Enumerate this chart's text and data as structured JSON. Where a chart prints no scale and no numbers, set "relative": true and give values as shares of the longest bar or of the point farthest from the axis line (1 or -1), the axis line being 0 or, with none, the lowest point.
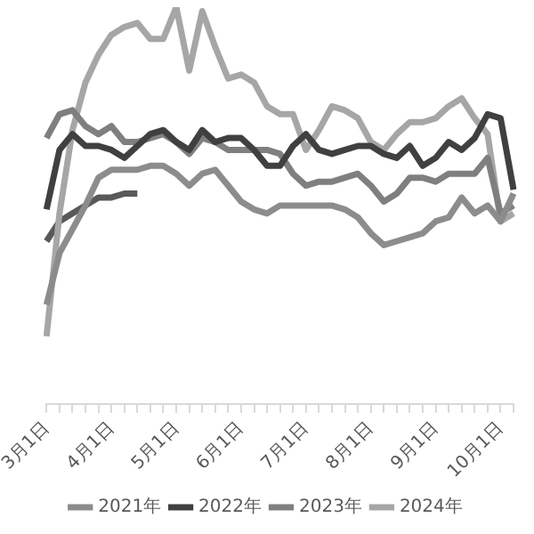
{
  "chart_data": {
    "type": "line",
    "relative": true,
    "legend": "bottom",
    "grid": false,
    "marker": "none",
    "categories": [
      "3月1日",
      null,
      null,
      null,
      null,
      "4月1日",
      null,
      null,
      null,
      null,
      "5月1日",
      null,
      null,
      null,
      null,
      "6月1日",
      null,
      null,
      null,
      null,
      "7月1日",
      null,
      null,
      null,
      null,
      "8月1日",
      null,
      null,
      null,
      null,
      "9月1日",
      null,
      null,
      null,
      null,
      "10月1日",
      null
    ],
    "series": [
      {
        "name": "2021年",
        "color": "#8c8c8c",
        "values": [
          0.25,
          0.38,
          0.44,
          0.5,
          0.57,
          0.59,
          0.59,
          0.59,
          0.6,
          0.6,
          0.58,
          0.55,
          0.58,
          0.59,
          0.55,
          0.51,
          0.49,
          0.48,
          0.5,
          0.5,
          0.5,
          0.5,
          0.5,
          0.49,
          0.47,
          0.43,
          0.4,
          0.41,
          0.42,
          0.43,
          0.46,
          0.47,
          0.52,
          0.48,
          0.5,
          0.46,
          0.53
        ]
      },
      {
        "name": "2022年",
        "color": "#404040",
        "values": [
          0.49,
          0.64,
          0.68,
          0.65,
          0.65,
          0.64,
          0.62,
          0.65,
          0.68,
          0.69,
          0.66,
          0.64,
          0.69,
          0.66,
          0.67,
          0.67,
          0.64,
          0.6,
          0.6,
          0.65,
          0.68,
          0.64,
          0.63,
          0.64,
          0.65,
          0.65,
          0.63,
          0.62,
          0.65,
          0.6,
          0.62,
          0.66,
          0.64,
          0.67,
          0.73,
          0.72,
          0.54
        ]
      },
      {
        "name": "2023年",
        "color": "#7f7f7f",
        "values": [
          0.67,
          0.73,
          0.74,
          0.7,
          0.68,
          0.7,
          0.66,
          0.66,
          0.67,
          0.68,
          0.66,
          0.63,
          0.67,
          0.66,
          0.64,
          0.64,
          0.64,
          0.64,
          0.63,
          0.58,
          0.55,
          0.56,
          0.56,
          0.57,
          0.58,
          0.55,
          0.51,
          0.53,
          0.57,
          0.57,
          0.56,
          0.58,
          0.58,
          0.58,
          0.62,
          0.48,
          0.5
        ]
      },
      {
        "name": "2024年",
        "color": "#a6a6a6",
        "values": [
          0.17,
          0.48,
          0.69,
          0.81,
          0.88,
          0.93,
          0.95,
          0.96,
          0.92,
          0.92,
          1.0,
          0.84,
          0.99,
          0.9,
          0.82,
          0.83,
          0.81,
          0.75,
          0.73,
          0.73,
          0.64,
          0.69,
          0.75,
          0.74,
          0.72,
          0.66,
          0.64,
          0.68,
          0.71,
          0.71,
          0.72,
          0.75,
          0.77,
          0.72,
          0.68,
          0.46,
          0.48
        ]
      },
      {
        "color": "#595959",
        "values": [
          0.41,
          0.46,
          0.48,
          0.5,
          0.52,
          0.52,
          0.53,
          0.53,
          null,
          null,
          null,
          null,
          null,
          null,
          null,
          null,
          null,
          null,
          null,
          null,
          null,
          null,
          null,
          null,
          null,
          null,
          null,
          null,
          null,
          null,
          null,
          null,
          null,
          null,
          null,
          null,
          null
        ]
      }
    ]
  }
}
